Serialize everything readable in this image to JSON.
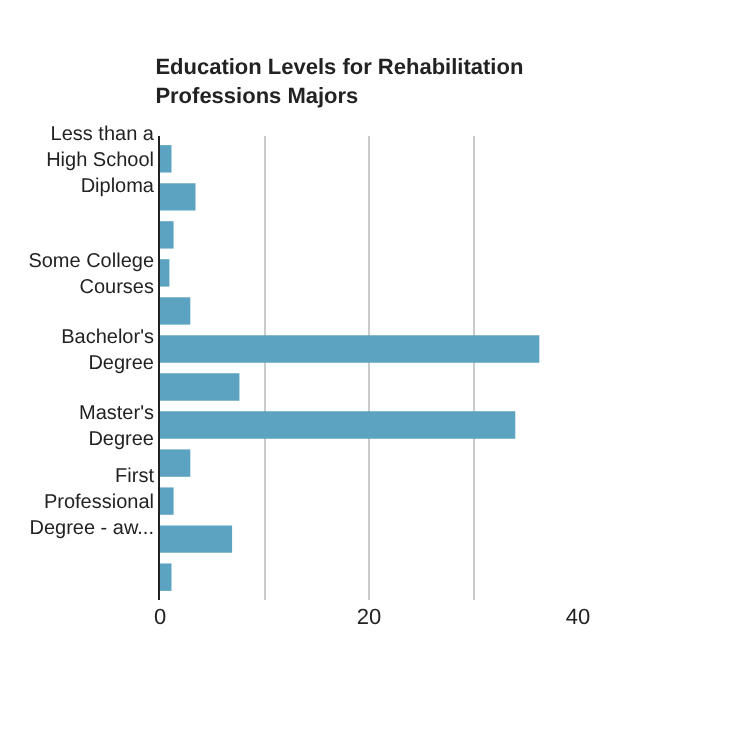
{
  "chart_data": {
    "type": "bar",
    "orientation": "horizontal",
    "title": "Education Levels for Rehabilitation Professions Majors",
    "categories": [
      "Less than a High School Diploma",
      null,
      null,
      "Some College Courses",
      null,
      "Bachelor's Degree",
      null,
      "Master's Degree",
      null,
      "First Professional Degree - aw...",
      null,
      null
    ],
    "series": [
      {
        "color": "#5ba3c0",
        "values": [
          1.1,
          3.4,
          1.3,
          0.9,
          2.9,
          36.3,
          7.6,
          34.0,
          2.9,
          1.3,
          6.9,
          1.1
        ]
      }
    ],
    "xlim": [
      0,
      40
    ],
    "xticks": [
      0,
      {
        "value": 10,
        "label": null
      },
      20,
      {
        "value": 30,
        "label": null
      },
      40
    ],
    "grid": "x"
  }
}
